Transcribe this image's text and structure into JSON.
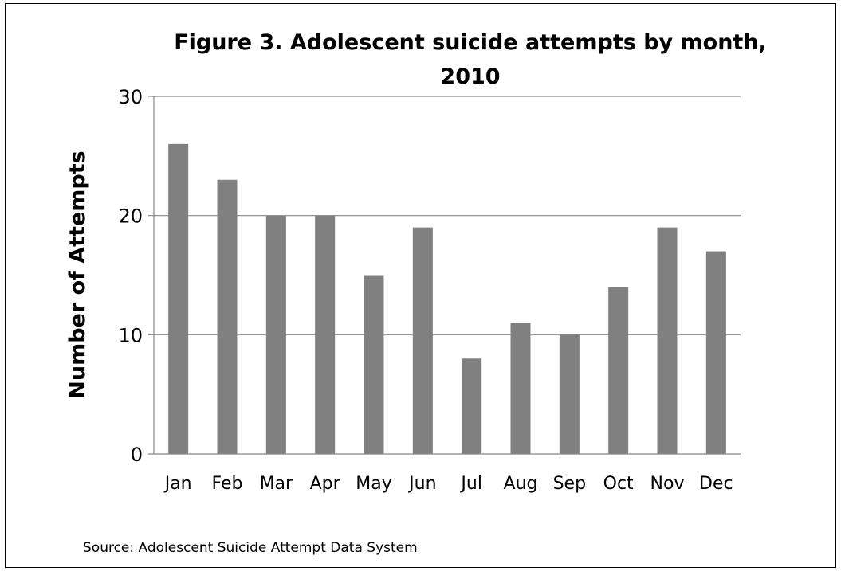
{
  "chart_data": {
    "type": "bar",
    "title_line1": "Figure 3. Adolescent suicide attempts by month,",
    "title_line2": "2010",
    "xlabel": "",
    "ylabel": "Number of Attempts",
    "categories": [
      "Jan",
      "Feb",
      "Mar",
      "Apr",
      "May",
      "Jun",
      "Jul",
      "Aug",
      "Sep",
      "Oct",
      "Nov",
      "Dec"
    ],
    "values": [
      26,
      23,
      20,
      20,
      15,
      19,
      8,
      11,
      10,
      14,
      19,
      17
    ],
    "ylim": [
      0,
      30
    ],
    "yticks": [
      "0",
      "10",
      "20",
      "30"
    ],
    "grid": true,
    "bar_color": "#808080",
    "grid_color": "#868686"
  },
  "footer": {
    "source": "Source: Adolescent Suicide Attempt Data System"
  }
}
